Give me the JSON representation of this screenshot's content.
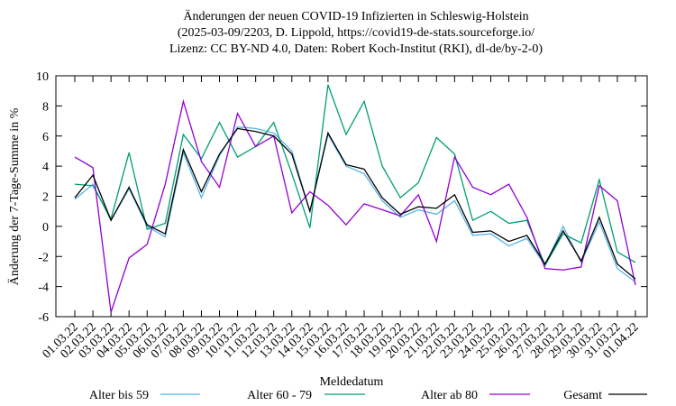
{
  "chart_data": {
    "type": "line",
    "title": [
      "Änderungen der neuen COVID-19 Infizierten in Schleswig-Holstein",
      "(2025-03-09/2203, D. Lippold, https://covid19-de-stats.sourceforge.io/",
      "Lizenz: CC BY-ND 4.0, Daten: Robert Koch-Institut (RKI), dl-de/by-2-0)"
    ],
    "x_label": "Meldedatum",
    "y_label": "Änderung der 7-Tage-Summe in %",
    "categories": [
      "01.03.22",
      "02.03.22",
      "03.03.22",
      "04.03.22",
      "05.03.22",
      "06.03.22",
      "07.03.22",
      "08.03.22",
      "09.03.22",
      "10.03.22",
      "11.03.22",
      "12.03.22",
      "13.03.22",
      "14.03.22",
      "15.03.22",
      "16.03.22",
      "17.03.22",
      "18.03.22",
      "19.03.22",
      "20.03.22",
      "21.03.22",
      "22.03.22",
      "23.03.22",
      "24.03.22",
      "25.03.22",
      "26.03.22",
      "27.03.22",
      "28.03.22",
      "29.03.22",
      "30.03.22",
      "31.03.22",
      "01.04.22"
    ],
    "ylim": [
      -6,
      10
    ],
    "yticks": [
      -6,
      -4,
      -2,
      0,
      2,
      4,
      6,
      8,
      10
    ],
    "series": [
      {
        "name": "Alter bis 59",
        "color": "#56b4e9",
        "values": [
          1.8,
          2.8,
          0.4,
          2.5,
          0.0,
          -0.7,
          4.9,
          1.9,
          4.7,
          6.6,
          6.5,
          6.2,
          5.0,
          1.0,
          6.1,
          4.0,
          3.5,
          1.7,
          0.6,
          1.1,
          0.8,
          1.7,
          -0.6,
          -0.5,
          -1.3,
          -0.8,
          -2.6,
          0.0,
          -2.4,
          0.3,
          -2.8,
          -3.7
        ]
      },
      {
        "name": "Alter 60 - 79",
        "color": "#009e73",
        "values": [
          2.8,
          2.7,
          0.5,
          4.9,
          -0.2,
          0.2,
          6.1,
          4.5,
          6.9,
          4.6,
          5.3,
          6.9,
          3.5,
          -0.1,
          9.4,
          6.1,
          8.3,
          4.0,
          1.9,
          2.9,
          5.9,
          4.8,
          0.4,
          1.0,
          0.2,
          0.4,
          -2.6,
          -0.5,
          -1.1,
          3.1,
          -1.7,
          -2.4
        ]
      },
      {
        "name": "Alter ab 80",
        "color": "#9400d3",
        "values": [
          4.6,
          3.9,
          -5.7,
          -2.1,
          -1.2,
          2.8,
          8.3,
          4.3,
          2.6,
          7.5,
          5.3,
          6.0,
          0.9,
          2.3,
          1.4,
          0.1,
          1.5,
          1.1,
          0.7,
          2.1,
          -1.0,
          4.6,
          2.6,
          2.1,
          2.8,
          0.6,
          -2.8,
          -2.9,
          -2.7,
          2.7,
          1.7,
          -3.9
        ]
      },
      {
        "name": "Gesamt",
        "color": "#000000",
        "values": [
          1.9,
          3.4,
          0.4,
          2.6,
          0.1,
          -0.5,
          5.1,
          2.3,
          4.8,
          6.5,
          6.3,
          6.0,
          4.8,
          1.0,
          6.2,
          4.1,
          3.8,
          1.9,
          0.8,
          1.3,
          1.2,
          2.1,
          -0.4,
          -0.3,
          -1.0,
          -0.6,
          -2.5,
          -0.3,
          -2.3,
          0.6,
          -2.5,
          -3.5
        ]
      }
    ]
  }
}
